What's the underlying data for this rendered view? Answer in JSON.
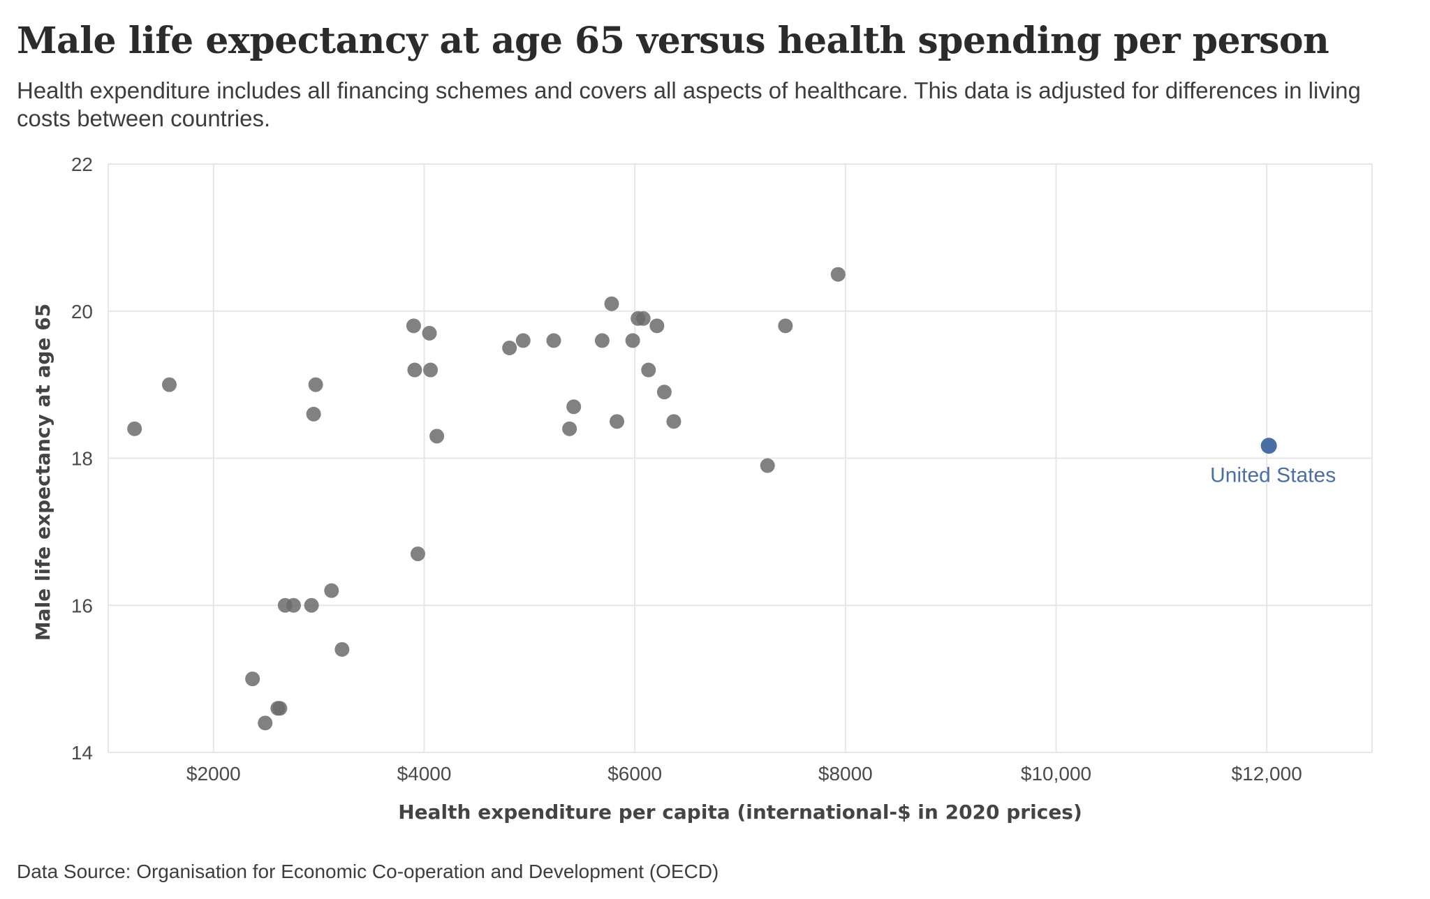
{
  "title": "Male life expectancy at age 65 versus health spending per person",
  "subtitle": "Health expenditure includes all financing schemes and covers all aspects of healthcare. This data is adjusted for differences in living costs between countries.",
  "source": "Data Source: Organisation for Economic Co-operation and Development (OECD)",
  "colors": {
    "point": "#6b6b6b",
    "highlight": "#4a6fa5",
    "grid": "#e6e6e6"
  },
  "chart_data": {
    "type": "scatter",
    "xlabel": "Health expenditure per capita (international-$ in 2020 prices)",
    "ylabel": "Male life expectancy at age 65",
    "xlim": [
      1000,
      13000
    ],
    "ylim": [
      14,
      22
    ],
    "xticks": [
      2000,
      4000,
      6000,
      8000,
      10000,
      12000
    ],
    "xtick_labels": [
      "$2000",
      "$4000",
      "$6000",
      "$8000",
      "$10,000",
      "$12,000"
    ],
    "yticks": [
      14,
      16,
      18,
      20,
      22
    ],
    "ytick_labels": [
      "14",
      "16",
      "18",
      "20",
      "22"
    ],
    "grid": true,
    "series": [
      {
        "points": [
          {
            "x": 1250,
            "y": 18.4
          },
          {
            "x": 1580,
            "y": 19.0
          },
          {
            "x": 2370,
            "y": 15.0
          },
          {
            "x": 2490,
            "y": 14.4
          },
          {
            "x": 2610,
            "y": 14.6
          },
          {
            "x": 2630,
            "y": 14.6
          },
          {
            "x": 2680,
            "y": 16.0
          },
          {
            "x": 2760,
            "y": 16.0
          },
          {
            "x": 2930,
            "y": 16.0
          },
          {
            "x": 2950,
            "y": 18.6
          },
          {
            "x": 2970,
            "y": 19.0
          },
          {
            "x": 3120,
            "y": 16.2
          },
          {
            "x": 3220,
            "y": 15.4
          },
          {
            "x": 3900,
            "y": 19.8
          },
          {
            "x": 3910,
            "y": 19.2
          },
          {
            "x": 3940,
            "y": 16.7
          },
          {
            "x": 4050,
            "y": 19.7
          },
          {
            "x": 4060,
            "y": 19.2
          },
          {
            "x": 4120,
            "y": 18.3
          },
          {
            "x": 4810,
            "y": 19.5
          },
          {
            "x": 4940,
            "y": 19.6
          },
          {
            "x": 5230,
            "y": 19.6
          },
          {
            "x": 5380,
            "y": 18.4
          },
          {
            "x": 5420,
            "y": 18.7
          },
          {
            "x": 5690,
            "y": 19.6
          },
          {
            "x": 5780,
            "y": 20.1
          },
          {
            "x": 5830,
            "y": 18.5
          },
          {
            "x": 5980,
            "y": 19.6
          },
          {
            "x": 6030,
            "y": 19.9
          },
          {
            "x": 6080,
            "y": 19.9
          },
          {
            "x": 6130,
            "y": 19.2
          },
          {
            "x": 6210,
            "y": 19.8
          },
          {
            "x": 6280,
            "y": 18.9
          },
          {
            "x": 6370,
            "y": 18.5
          },
          {
            "x": 7260,
            "y": 17.9
          },
          {
            "x": 7430,
            "y": 19.8
          },
          {
            "x": 7930,
            "y": 20.5
          }
        ]
      },
      {
        "highlight": true,
        "points": [
          {
            "x": 12020,
            "y": 18.17,
            "label": "United States"
          }
        ]
      }
    ]
  }
}
